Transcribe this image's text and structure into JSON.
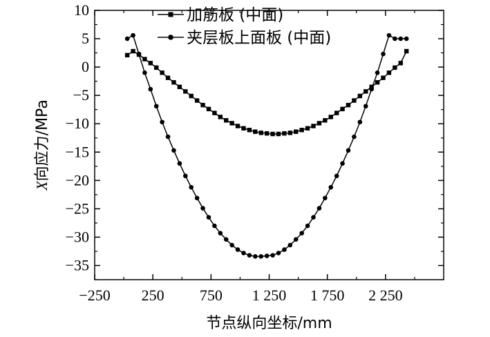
{
  "chart_data": {
    "type": "line",
    "xlabel": "节点纵向坐标/mm",
    "ylabel_italic": "X",
    "ylabel_rest": "向应力/MPa",
    "xlim": [
      -250,
      2750
    ],
    "ylim": [
      -37.5,
      10
    ],
    "x_ticks": [
      -250,
      250,
      750,
      1250,
      1750,
      2250
    ],
    "x_tick_labels": [
      "−250",
      "250",
      "750",
      "1 250",
      "1 750",
      "2 250"
    ],
    "y_ticks": [
      10,
      5,
      0,
      -5,
      -10,
      -15,
      -20,
      -25,
      -30,
      -35
    ],
    "y_tick_labels": [
      "10",
      "5",
      "0",
      "−5",
      "−10",
      "−15",
      "−20",
      "−25",
      "−30",
      "−35"
    ],
    "legend_position": "top-center",
    "series": [
      {
        "name": "加筋板 (中面)",
        "marker": "square",
        "x": [
          30,
          80,
          130,
          180,
          230,
          280,
          330,
          380,
          430,
          480,
          530,
          580,
          630,
          680,
          730,
          780,
          830,
          880,
          930,
          980,
          1030,
          1080,
          1130,
          1180,
          1230,
          1280,
          1330,
          1380,
          1430,
          1480,
          1530,
          1580,
          1630,
          1680,
          1730,
          1780,
          1830,
          1880,
          1930,
          1980,
          2030,
          2080,
          2130,
          2180,
          2230,
          2280,
          2330,
          2380,
          2430
        ],
        "y": [
          2.1,
          2.8,
          2.2,
          1.4,
          0.7,
          -0.1,
          -1.0,
          -1.9,
          -2.7,
          -3.5,
          -4.3,
          -5.1,
          -5.9,
          -6.7,
          -7.4,
          -8.1,
          -8.8,
          -9.4,
          -9.9,
          -10.4,
          -10.8,
          -11.1,
          -11.4,
          -11.6,
          -11.7,
          -11.8,
          -11.8,
          -11.7,
          -11.6,
          -11.4,
          -11.1,
          -10.8,
          -10.4,
          -9.9,
          -9.4,
          -8.8,
          -8.1,
          -7.4,
          -6.7,
          -5.9,
          -5.1,
          -4.3,
          -3.5,
          -2.7,
          -1.9,
          -1.0,
          -0.1,
          0.7,
          2.8
        ]
      },
      {
        "name": "夹层板上面板 (中面)",
        "marker": "circle",
        "x": [
          30,
          80,
          130,
          180,
          230,
          280,
          330,
          380,
          430,
          480,
          530,
          580,
          630,
          680,
          730,
          780,
          830,
          880,
          930,
          980,
          1030,
          1080,
          1130,
          1180,
          1230,
          1280,
          1330,
          1380,
          1430,
          1480,
          1530,
          1580,
          1630,
          1680,
          1730,
          1780,
          1830,
          1880,
          1930,
          1980,
          2030,
          2080,
          2130,
          2180,
          2230,
          2280,
          2330,
          2380,
          2430
        ],
        "y": [
          5.0,
          5.6,
          2.3,
          -1.0,
          -3.9,
          -6.9,
          -9.7,
          -12.3,
          -14.7,
          -17.0,
          -19.2,
          -21.2,
          -23.1,
          -24.9,
          -26.5,
          -28.0,
          -29.3,
          -30.4,
          -31.4,
          -32.2,
          -32.8,
          -33.2,
          -33.4,
          -33.4,
          -33.3,
          -33.2,
          -32.8,
          -32.2,
          -31.4,
          -30.4,
          -29.3,
          -28.0,
          -26.5,
          -24.9,
          -23.1,
          -21.2,
          -19.2,
          -17.0,
          -14.7,
          -12.3,
          -9.7,
          -6.9,
          -3.9,
          -1.0,
          2.3,
          5.6,
          5.0,
          5.0,
          5.0
        ]
      }
    ]
  }
}
